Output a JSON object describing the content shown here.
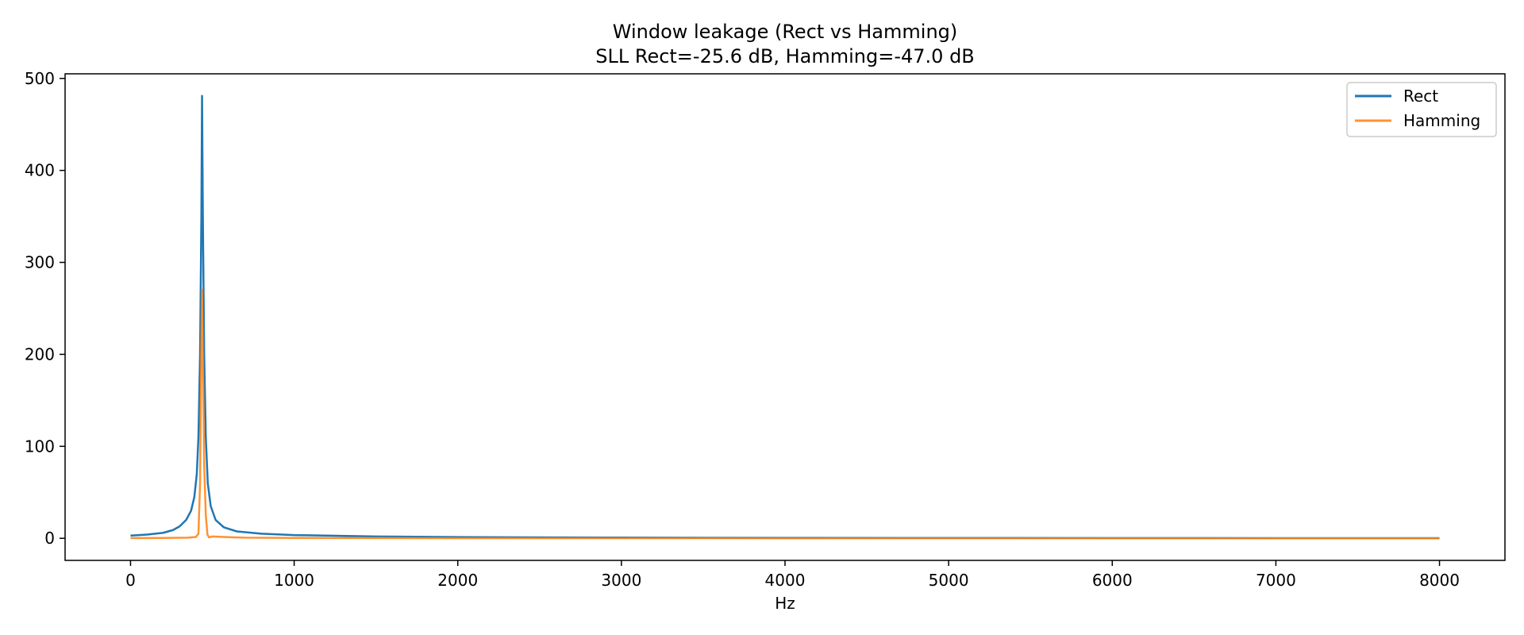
{
  "chart_data": {
    "type": "line",
    "title": "Window leakage (Rect vs Hamming)",
    "subtitle": "SLL Rect=-25.6 dB, Hamming=-47.0 dB",
    "xlabel": "Hz",
    "ylabel": "",
    "xlim": [
      -400,
      8400
    ],
    "ylim": [
      -24,
      505
    ],
    "xticks": [
      0,
      1000,
      2000,
      3000,
      4000,
      5000,
      6000,
      7000,
      8000
    ],
    "xtick_labels": [
      "0",
      "1000",
      "2000",
      "3000",
      "4000",
      "5000",
      "6000",
      "7000",
      "8000"
    ],
    "yticks": [
      0,
      100,
      200,
      300,
      400,
      500
    ],
    "ytick_labels": [
      "0",
      "100",
      "200",
      "300",
      "400",
      "500"
    ],
    "grid": false,
    "legend_position": "top-right",
    "series": [
      {
        "name": "Rect",
        "color": "#1f77b4",
        "points": [
          [
            0,
            3
          ],
          [
            100,
            4
          ],
          [
            200,
            6
          ],
          [
            260,
            9
          ],
          [
            300,
            13
          ],
          [
            340,
            20
          ],
          [
            370,
            30
          ],
          [
            390,
            45
          ],
          [
            405,
            70
          ],
          [
            415,
            110
          ],
          [
            425,
            200
          ],
          [
            433,
            350
          ],
          [
            437,
            481
          ],
          [
            442,
            350
          ],
          [
            450,
            200
          ],
          [
            460,
            110
          ],
          [
            472,
            60
          ],
          [
            490,
            35
          ],
          [
            520,
            20
          ],
          [
            570,
            12
          ],
          [
            650,
            7.5
          ],
          [
            800,
            5
          ],
          [
            1000,
            3.5
          ],
          [
            1500,
            2
          ],
          [
            2000,
            1.3
          ],
          [
            3000,
            0.8
          ],
          [
            4000,
            0.5
          ],
          [
            5000,
            0.4
          ],
          [
            6000,
            0.3
          ],
          [
            7000,
            0.2
          ],
          [
            8000,
            0.2
          ]
        ]
      },
      {
        "name": "Hamming",
        "color": "#ff7f0e",
        "points": [
          [
            0,
            0.3
          ],
          [
            200,
            0.4
          ],
          [
            350,
            0.7
          ],
          [
            400,
            1.5
          ],
          [
            415,
            5
          ],
          [
            425,
            60
          ],
          [
            432,
            200
          ],
          [
            437,
            270
          ],
          [
            442,
            200
          ],
          [
            450,
            80
          ],
          [
            460,
            25
          ],
          [
            470,
            4
          ],
          [
            480,
            1
          ],
          [
            500,
            2
          ],
          [
            600,
            1.2
          ],
          [
            700,
            0.7
          ],
          [
            1000,
            0.4
          ],
          [
            2000,
            0.2
          ],
          [
            4000,
            0.1
          ],
          [
            6000,
            0.1
          ],
          [
            8000,
            0.1
          ]
        ]
      }
    ]
  }
}
